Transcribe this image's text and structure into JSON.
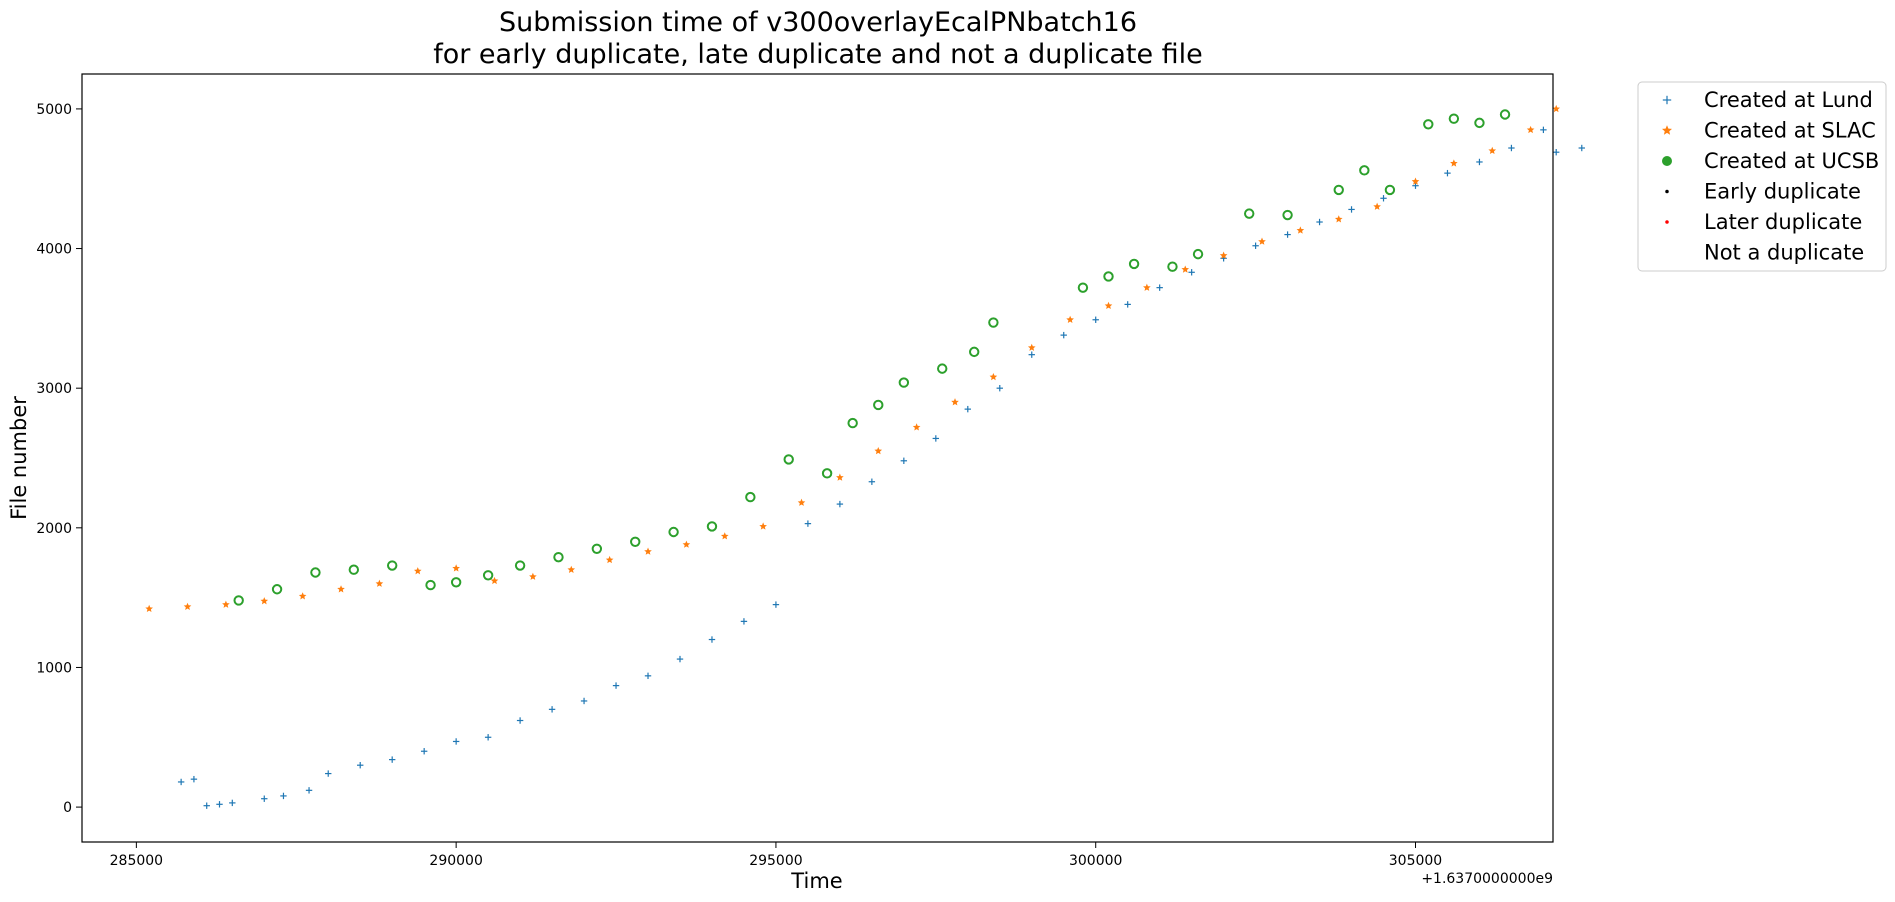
{
  "chart_data": {
    "type": "scatter",
    "title_line1": "Submission time of v300overlayEcalPNbatch16",
    "title_line2": "for early duplicate, late duplicate and not a duplicate file",
    "xlabel": "Time",
    "ylabel": "File number",
    "x_offset_label": "+1.6370000000e9",
    "xlim": [
      284150,
      307150
    ],
    "ylim": [
      -250,
      5250
    ],
    "xticks": [
      285000,
      290000,
      295000,
      300000,
      305000
    ],
    "xtick_labels": [
      "285000",
      "290000",
      "295000",
      "300000",
      "305000"
    ],
    "yticks": [
      0,
      1000,
      2000,
      3000,
      4000,
      5000
    ],
    "ytick_labels": [
      "0",
      "1000",
      "2000",
      "3000",
      "4000",
      "5000"
    ],
    "grid": false,
    "legend_placement": "outside top-right",
    "series": [
      {
        "name": "Created at Lund",
        "marker": "plus",
        "color": "#1f77b4",
        "x": [
          285700,
          285900,
          286100,
          286300,
          286500,
          287000,
          287300,
          287700,
          288000,
          288500,
          289000,
          289500,
          290000,
          290500,
          291000,
          291500,
          292000,
          292500,
          293000,
          293500,
          294000,
          294500,
          295000,
          295500,
          296000,
          296500,
          297000,
          297500,
          298000,
          298500,
          299000,
          299500,
          300000,
          300500,
          301000,
          301500,
          302000,
          302500,
          303000,
          303500,
          304000,
          304500,
          305000,
          305500,
          306000,
          306500,
          307000,
          307200,
          307600
        ],
        "y": [
          180,
          200,
          10,
          20,
          30,
          60,
          80,
          120,
          240,
          300,
          340,
          400,
          470,
          500,
          620,
          700,
          760,
          870,
          940,
          1060,
          1200,
          1330,
          1450,
          2030,
          2170,
          2330,
          2480,
          2640,
          2850,
          3000,
          3240,
          3380,
          3490,
          3600,
          3720,
          3830,
          3930,
          4020,
          4100,
          4190,
          4280,
          4360,
          4450,
          4540,
          4620,
          4720,
          4850,
          4690,
          4720
        ]
      },
      {
        "name": "Created at SLAC",
        "marker": "star",
        "color": "#ff7f0e",
        "x": [
          285200,
          285800,
          286400,
          287000,
          287600,
          288200,
          288800,
          289400,
          290000,
          290600,
          291200,
          291800,
          292400,
          293000,
          293600,
          294200,
          294800,
          295400,
          296000,
          296600,
          297200,
          297800,
          298400,
          299000,
          299600,
          300200,
          300800,
          301400,
          302000,
          302600,
          303200,
          303800,
          304400,
          305000,
          305600,
          306200,
          306800,
          307200
        ],
        "y": [
          1420,
          1435,
          1450,
          1475,
          1510,
          1560,
          1600,
          1690,
          1710,
          1620,
          1650,
          1700,
          1770,
          1830,
          1880,
          1940,
          2010,
          2180,
          2360,
          2550,
          2720,
          2900,
          3080,
          3290,
          3490,
          3590,
          3720,
          3850,
          3950,
          4050,
          4130,
          4210,
          4300,
          4480,
          4610,
          4700,
          4850,
          5000
        ]
      },
      {
        "name": "Created at UCSB",
        "marker": "circle",
        "color": "#2ca02c",
        "x": [
          286600,
          287200,
          287800,
          288400,
          289000,
          289600,
          290000,
          290500,
          291000,
          291600,
          292200,
          292800,
          293400,
          294000,
          294600,
          295200,
          295800,
          296200,
          296600,
          297000,
          297600,
          298100,
          298400,
          299800,
          300200,
          300600,
          301200,
          301600,
          302400,
          303000,
          303800,
          304200,
          304600,
          305200,
          305600,
          306000,
          306400
        ],
        "y": [
          1480,
          1560,
          1680,
          1700,
          1730,
          1590,
          1610,
          1660,
          1730,
          1790,
          1850,
          1900,
          1970,
          2010,
          2220,
          2490,
          2390,
          2750,
          2880,
          3040,
          3140,
          3260,
          3470,
          3720,
          3800,
          3890,
          3870,
          3960,
          4250,
          4240,
          4420,
          4560,
          4420,
          4890,
          4930,
          4900,
          4960
        ]
      },
      {
        "name": "Early duplicate",
        "marker": "dot",
        "color": "#000000",
        "x": [],
        "y": []
      },
      {
        "name": "Later duplicate",
        "marker": "dot",
        "color": "#ff0000",
        "x": [],
        "y": []
      },
      {
        "name": "Not a duplicate",
        "marker": "none",
        "color": "#ffffff",
        "x": [],
        "y": []
      }
    ]
  }
}
